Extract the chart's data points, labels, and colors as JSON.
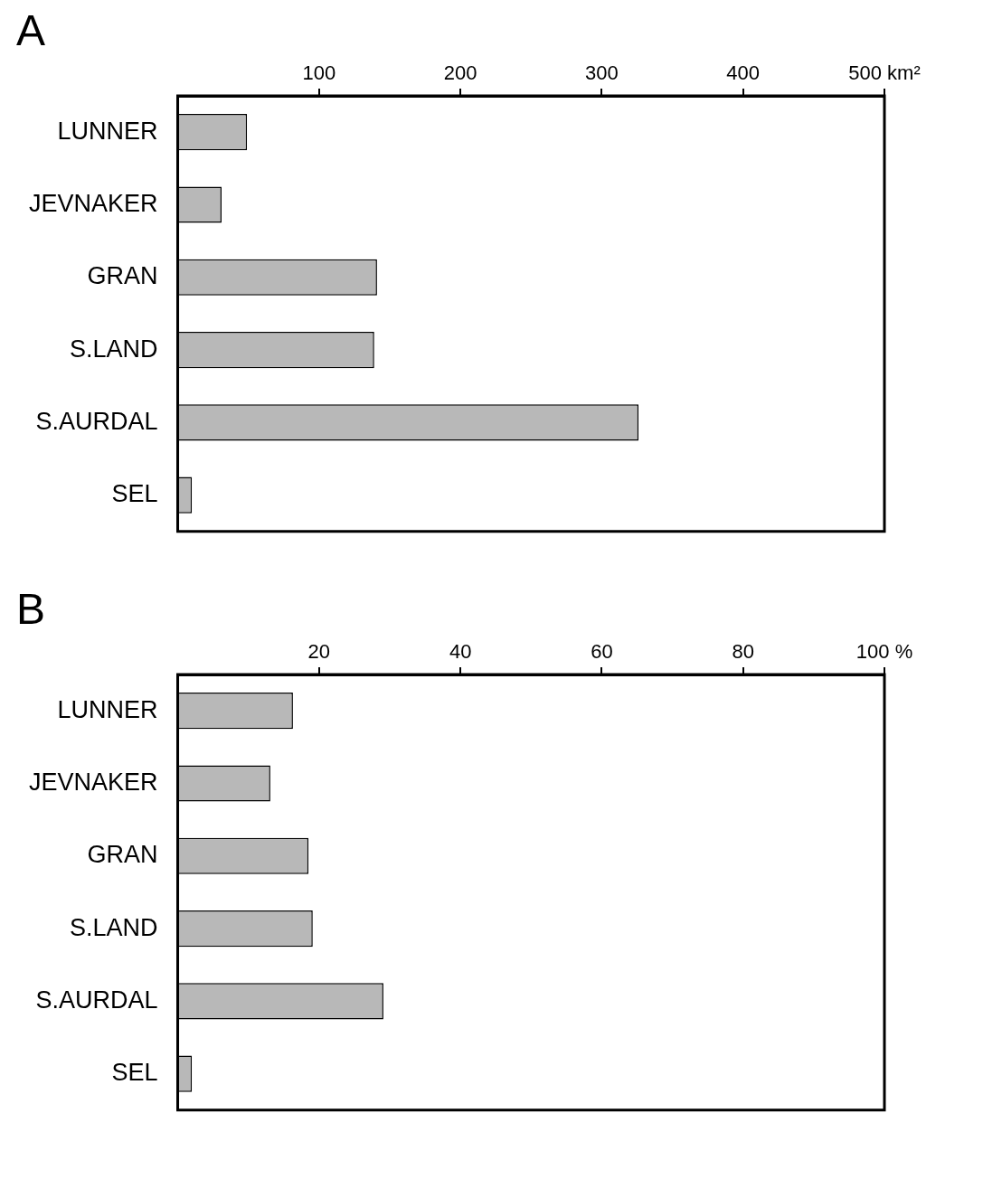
{
  "chart_data": [
    {
      "type": "bar",
      "title": "A",
      "orientation": "horizontal",
      "categories": [
        "LUNNER",
        "JEVNAKER",
        "GRAN",
        "S.LAND",
        "S.AURDAL",
        "SEL"
      ],
      "values": [
        49,
        31,
        141,
        139,
        326,
        10
      ],
      "color": "#b8b8b8",
      "xlim": [
        0,
        500
      ],
      "xticks": [
        100,
        200,
        300,
        400,
        {
          "value": 500,
          "label": "500 km²"
        }
      ],
      "grid": false,
      "legend": false
    },
    {
      "type": "bar",
      "title": "B",
      "orientation": "horizontal",
      "categories": [
        "LUNNER",
        "JEVNAKER",
        "GRAN",
        "S.LAND",
        "S.AURDAL",
        "SEL"
      ],
      "values": [
        16.3,
        13.1,
        18.5,
        19.1,
        29.1,
        2
      ],
      "color": "#b8b8b8",
      "xlim": [
        0,
        100
      ],
      "xticks": [
        20,
        40,
        60,
        80,
        {
          "value": 100,
          "label": "100 %"
        }
      ],
      "grid": false,
      "legend": false
    }
  ]
}
